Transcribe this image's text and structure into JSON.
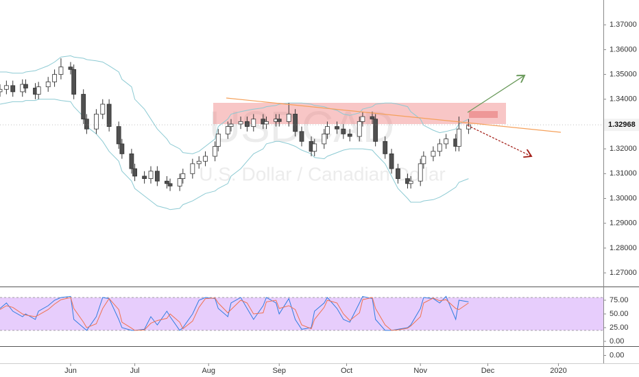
{
  "chart_data": [
    {
      "type": "candlestick",
      "watermark_symbol": "USDCAD",
      "watermark_name": "U.S. Dollar / Canadian Dollar",
      "x": [
        "2019-05-02",
        "2019-05-05",
        "2019-05-08",
        "2019-05-11",
        "2019-05-14",
        "2019-05-17",
        "2019-05-20",
        "2019-05-23",
        "2019-05-26",
        "2019-05-29",
        "2019-06-01",
        "2019-06-04",
        "2019-06-07",
        "2019-06-10",
        "2019-06-13",
        "2019-06-16",
        "2019-06-19",
        "2019-06-22",
        "2019-06-25",
        "2019-06-28",
        "2019-07-01",
        "2019-07-04",
        "2019-07-07",
        "2019-07-10",
        "2019-07-13",
        "2019-07-16",
        "2019-07-19",
        "2019-07-22",
        "2019-07-25",
        "2019-07-28",
        "2019-07-31",
        "2019-08-03",
        "2019-08-06",
        "2019-08-09",
        "2019-08-12",
        "2019-08-15",
        "2019-08-18",
        "2019-08-21",
        "2019-08-24",
        "2019-08-27",
        "2019-08-30",
        "2019-09-02",
        "2019-09-05",
        "2019-09-08",
        "2019-09-11",
        "2019-09-14",
        "2019-09-17",
        "2019-09-20",
        "2019-09-23",
        "2019-09-26",
        "2019-09-29",
        "2019-10-02",
        "2019-10-05",
        "2019-10-08",
        "2019-10-11",
        "2019-10-14",
        "2019-10-17",
        "2019-10-20",
        "2019-10-23",
        "2019-10-26",
        "2019-10-29",
        "2019-11-01",
        "2019-11-04",
        "2019-11-07",
        "2019-11-10",
        "2019-11-13",
        "2019-11-16",
        "2019-11-19",
        "2019-11-22"
      ],
      "open": [
        1.343,
        1.344,
        1.3455,
        1.343,
        1.346,
        1.3445,
        1.342,
        1.345,
        1.347,
        1.35,
        1.353,
        1.352,
        1.342,
        1.332,
        1.328,
        1.334,
        1.338,
        1.329,
        1.322,
        1.318,
        1.312,
        1.309,
        1.308,
        1.311,
        1.307,
        1.306,
        1.305,
        1.308,
        1.31,
        1.314,
        1.315,
        1.317,
        1.321,
        1.326,
        1.329,
        1.33,
        1.331,
        1.329,
        1.332,
        1.33,
        1.331,
        1.332,
        1.331,
        1.334,
        1.327,
        1.323,
        1.319,
        1.322,
        1.326,
        1.329,
        1.328,
        1.326,
        1.325,
        1.331,
        1.333,
        1.332,
        1.323,
        1.318,
        1.312,
        1.308,
        1.306,
        1.307,
        1.314,
        1.317,
        1.319,
        1.322,
        1.324,
        1.321,
        1.328
      ],
      "high": [
        1.346,
        1.3475,
        1.3475,
        1.348,
        1.348,
        1.3465,
        1.347,
        1.349,
        1.352,
        1.3565,
        1.355,
        1.354,
        1.344,
        1.334,
        1.336,
        1.34,
        1.34,
        1.331,
        1.324,
        1.32,
        1.314,
        1.311,
        1.313,
        1.313,
        1.309,
        1.308,
        1.31,
        1.312,
        1.316,
        1.317,
        1.319,
        1.323,
        1.328,
        1.331,
        1.332,
        1.333,
        1.333,
        1.334,
        1.334,
        1.333,
        1.334,
        1.334,
        1.3385,
        1.336,
        1.329,
        1.325,
        1.324,
        1.328,
        1.331,
        1.331,
        1.33,
        1.328,
        1.333,
        1.335,
        1.335,
        1.334,
        1.325,
        1.32,
        1.314,
        1.31,
        1.309,
        1.316,
        1.319,
        1.321,
        1.324,
        1.326,
        1.326,
        1.333,
        1.332
      ],
      "low": [
        1.341,
        1.342,
        1.341,
        1.341,
        1.3425,
        1.34,
        1.34,
        1.343,
        1.345,
        1.348,
        1.35,
        1.34,
        1.33,
        1.326,
        1.326,
        1.332,
        1.327,
        1.32,
        1.316,
        1.31,
        1.307,
        1.306,
        1.306,
        1.305,
        1.304,
        1.303,
        1.303,
        1.306,
        1.308,
        1.312,
        1.313,
        1.315,
        1.319,
        1.324,
        1.327,
        1.328,
        1.327,
        1.327,
        1.328,
        1.328,
        1.329,
        1.329,
        1.329,
        1.325,
        1.321,
        1.317,
        1.317,
        1.32,
        1.324,
        1.326,
        1.324,
        1.323,
        1.323,
        1.329,
        1.33,
        1.321,
        1.316,
        1.31,
        1.306,
        1.304,
        1.304,
        1.305,
        1.312,
        1.315,
        1.317,
        1.32,
        1.319,
        1.319,
        1.326
      ],
      "close": [
        1.344,
        1.3455,
        1.343,
        1.346,
        1.3445,
        1.342,
        1.345,
        1.347,
        1.35,
        1.353,
        1.352,
        1.342,
        1.332,
        1.328,
        1.334,
        1.338,
        1.329,
        1.322,
        1.318,
        1.312,
        1.309,
        1.308,
        1.311,
        1.307,
        1.306,
        1.305,
        1.308,
        1.31,
        1.314,
        1.315,
        1.317,
        1.321,
        1.326,
        1.329,
        1.33,
        1.331,
        1.329,
        1.332,
        1.33,
        1.331,
        1.332,
        1.331,
        1.334,
        1.327,
        1.323,
        1.319,
        1.322,
        1.326,
        1.329,
        1.328,
        1.326,
        1.325,
        1.331,
        1.333,
        1.332,
        1.323,
        1.318,
        1.312,
        1.308,
        1.306,
        1.307,
        1.314,
        1.317,
        1.319,
        1.322,
        1.324,
        1.321,
        1.328,
        1.3297
      ],
      "up_color": "#ffffff",
      "down_color": "#505050",
      "wick_color": "#333333",
      "series": [
        {
          "color": "#8ccad3",
          "values": [
            1.351,
            1.351,
            1.3505,
            1.3505,
            1.351,
            1.3515,
            1.352,
            1.3535,
            1.355,
            1.357,
            1.3575,
            1.357,
            1.3565,
            1.356,
            1.3555,
            1.355,
            1.3535,
            1.351,
            1.348,
            1.345,
            1.34,
            1.336,
            1.332,
            1.328,
            1.324,
            1.322,
            1.32,
            1.3185,
            1.318,
            1.319,
            1.321,
            1.324,
            1.329,
            1.332,
            1.334,
            1.335,
            1.3355,
            1.336,
            1.3365,
            1.337,
            1.3375,
            1.338,
            1.3385,
            1.3385,
            1.3385,
            1.338,
            1.3375,
            1.337,
            1.3365,
            1.3355,
            1.334,
            1.3335,
            1.3345,
            1.336,
            1.337,
            1.338,
            1.3385,
            1.3385,
            1.338,
            1.337,
            1.335,
            1.332,
            1.3295,
            1.3275,
            1.3265,
            1.327,
            1.328,
            1.33,
            1.332
          ]
        },
        {
          "color": "#8ccad3",
          "values": [
            1.338,
            1.3385,
            1.339,
            1.339,
            1.3395,
            1.3395,
            1.34,
            1.34,
            1.34,
            1.3395,
            1.339,
            1.337,
            1.333,
            1.329,
            1.326,
            1.323,
            1.319,
            1.315,
            1.311,
            1.307,
            1.304,
            1.301,
            1.299,
            1.297,
            1.296,
            1.2955,
            1.296,
            1.2975,
            1.299,
            1.3005,
            1.302,
            1.303,
            1.304,
            1.306,
            1.309,
            1.312,
            1.315,
            1.318,
            1.32,
            1.322,
            1.323,
            1.323,
            1.322,
            1.321,
            1.3195,
            1.318,
            1.3165,
            1.316,
            1.317,
            1.3185,
            1.3195,
            1.32,
            1.32,
            1.32,
            1.3195,
            1.318,
            1.314,
            1.309,
            1.304,
            1.3,
            1.2985,
            1.2985,
            1.299,
            1.2995,
            1.3005,
            1.302,
            1.3045,
            1.3065,
            1.308
          ]
        }
      ],
      "ylim": [
        1.2645,
        1.38
      ],
      "yticks": [
        {
          "value": 1.27,
          "label": "1.27000"
        },
        {
          "value": 1.28,
          "label": "1.28000"
        },
        {
          "value": 1.29,
          "label": "1.29000"
        },
        {
          "value": 1.3,
          "label": "1.30000"
        },
        {
          "value": 1.31,
          "label": "1.31000"
        },
        {
          "value": 1.32,
          "label": "1.32000"
        },
        {
          "value": 1.34,
          "label": "1.34000"
        },
        {
          "value": 1.35,
          "label": "1.35000"
        },
        {
          "value": 1.36,
          "label": "1.36000"
        },
        {
          "value": 1.37,
          "label": "1.37000"
        }
      ],
      "last_price": {
        "value": 1.32968,
        "label": "1.32968"
      },
      "xlim": [
        "2019-05-02",
        "2020-01-21"
      ],
      "xticks": [
        {
          "value": "2019-06-01",
          "label": "Jun"
        },
        {
          "value": "2019-07-01",
          "label": "Jul"
        },
        {
          "value": "2019-08-01",
          "label": "Aug"
        },
        {
          "value": "2019-09-01",
          "label": "Sep"
        },
        {
          "value": "2019-10-01",
          "label": "Oct"
        },
        {
          "value": "2019-11-01",
          "label": "Nov"
        },
        {
          "value": "2019-12-01",
          "label": "Dec"
        },
        {
          "value": "2020-01-01",
          "label": "2020"
        }
      ]
    },
    {
      "type": "line",
      "series": [
        {
          "color": "#2f7de1",
          "values": [
            60,
            70,
            55,
            45,
            50,
            40,
            55,
            65,
            75,
            80,
            82,
            40,
            25,
            20,
            45,
            80,
            78,
            40,
            25,
            20,
            20,
            22,
            45,
            30,
            55,
            45,
            20,
            25,
            50,
            75,
            80,
            78,
            60,
            45,
            70,
            80,
            60,
            40,
            65,
            80,
            70,
            50,
            78,
            40,
            22,
            25,
            55,
            70,
            80,
            60,
            40,
            35,
            70,
            82,
            78,
            40,
            20,
            20,
            22,
            25,
            30,
            60,
            80,
            78,
            70,
            82,
            40,
            75,
            72
          ]
        },
        {
          "color": "#f0714f",
          "values": [
            58,
            65,
            62,
            50,
            48,
            45,
            48,
            58,
            68,
            76,
            80,
            60,
            35,
            25,
            32,
            60,
            78,
            58,
            35,
            24,
            20,
            21,
            33,
            38,
            42,
            50,
            35,
            23,
            37,
            62,
            78,
            79,
            70,
            52,
            58,
            75,
            70,
            50,
            52,
            72,
            75,
            60,
            65,
            58,
            30,
            23,
            40,
            62,
            75,
            70,
            50,
            38,
            52,
            76,
            80,
            60,
            30,
            20,
            21,
            24,
            28,
            45,
            70,
            79,
            74,
            76,
            60,
            58,
            70
          ]
        }
      ],
      "bands": [
        20,
        80
      ],
      "band_color": "#e3c4fb",
      "ylim": [
        -8.75,
        97.5
      ],
      "yticks": [
        {
          "value": 0,
          "label": "0.00"
        },
        {
          "value": 25,
          "label": "25.00"
        },
        {
          "value": 50,
          "label": "50.00"
        },
        {
          "value": 75,
          "label": "75.00"
        }
      ]
    },
    {
      "type": "line",
      "ylim": [
        -1,
        1
      ],
      "yticks": [
        {
          "value": 0,
          "label": "0.00"
        }
      ]
    }
  ]
}
